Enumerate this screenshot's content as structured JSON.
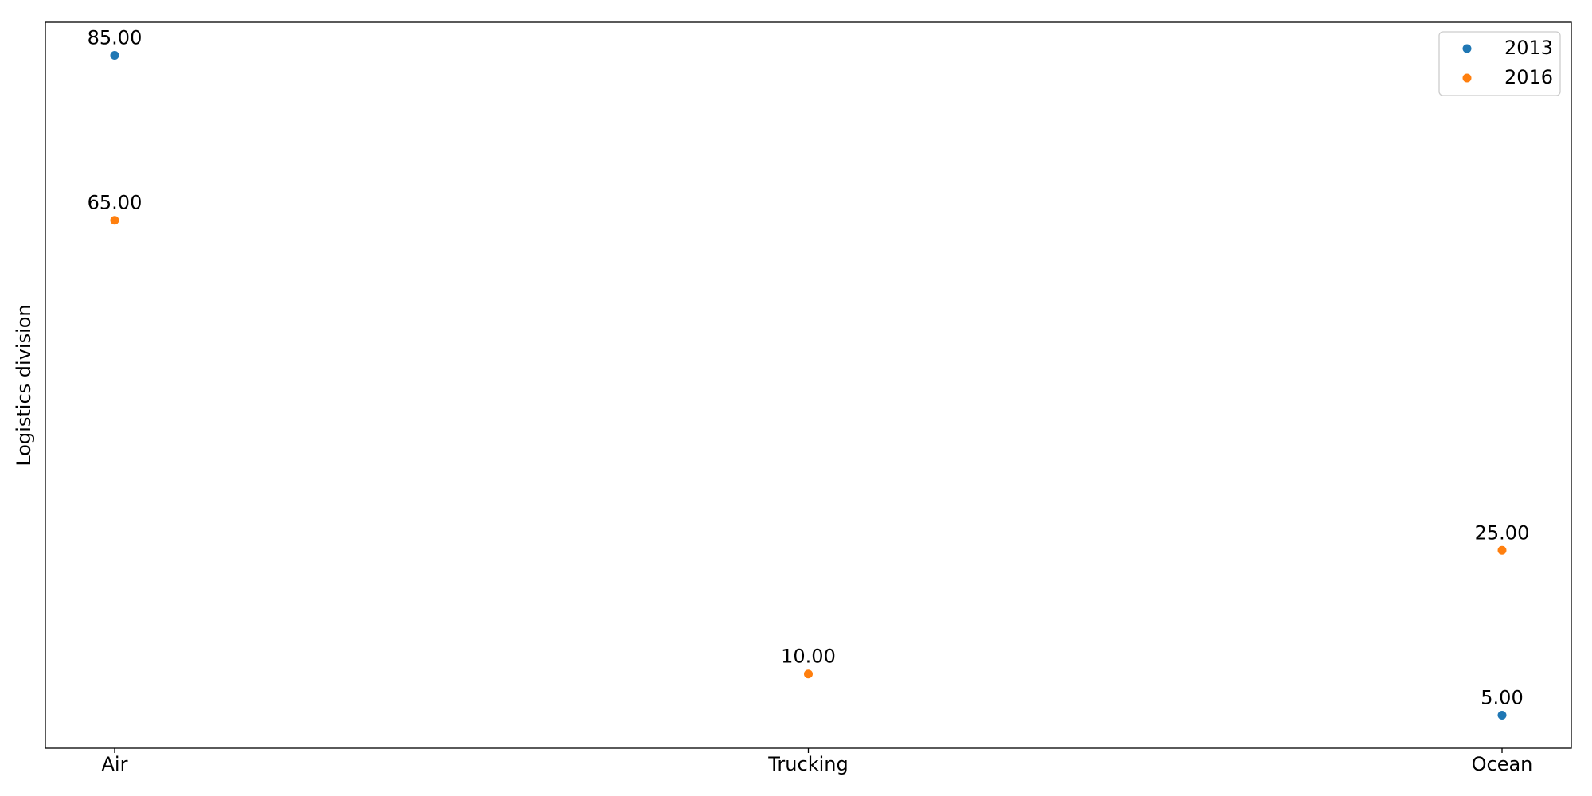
{
  "chart_data": {
    "type": "scatter",
    "categories": [
      "Air",
      "Trucking",
      "Ocean"
    ],
    "series": [
      {
        "name": "2013",
        "color": "#1f77b4",
        "points": [
          {
            "x": "Air",
            "y": 85
          },
          {
            "x": "Ocean",
            "y": 5
          }
        ]
      },
      {
        "name": "2016",
        "color": "#ff7f0e",
        "points": [
          {
            "x": "Air",
            "y": 65
          },
          {
            "x": "Trucking",
            "y": 10
          },
          {
            "x": "Ocean",
            "y": 25
          }
        ]
      }
    ],
    "data_labels": [
      "85.00",
      "65.00",
      "10.00",
      "5.00",
      "25.00"
    ],
    "title": "",
    "xlabel": "",
    "ylabel": "Logistics division",
    "ylim": [
      1,
      89
    ],
    "y_ticks_visible": false,
    "grid": false,
    "legend_position": "top-right",
    "legend_entries": [
      "2013",
      "2016"
    ]
  }
}
